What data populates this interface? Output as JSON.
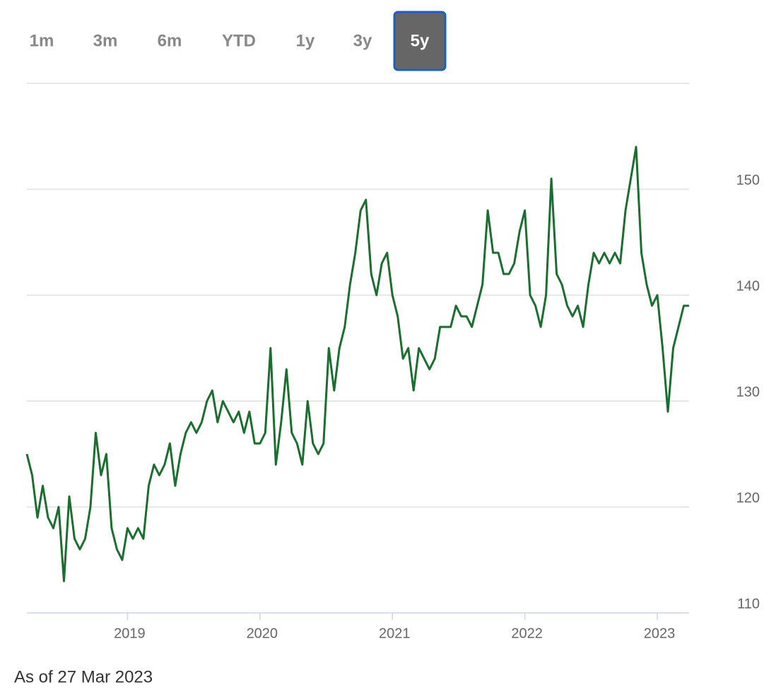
{
  "chart_data": {
    "type": "line",
    "range_buttons": [
      "1m",
      "3m",
      "6m",
      "YTD",
      "1y",
      "3y",
      "5y"
    ],
    "selected_range": "5y",
    "note": "As of 27 Mar 2023",
    "x": [
      2018.24,
      2018.28,
      2018.32,
      2018.36,
      2018.4,
      2018.44,
      2018.48,
      2018.52,
      2018.56,
      2018.6,
      2018.64,
      2018.68,
      2018.72,
      2018.76,
      2018.8,
      2018.84,
      2018.88,
      2018.92,
      2018.96,
      2019.0,
      2019.04,
      2019.08,
      2019.12,
      2019.16,
      2019.2,
      2019.24,
      2019.28,
      2019.32,
      2019.36,
      2019.4,
      2019.44,
      2019.48,
      2019.52,
      2019.56,
      2019.6,
      2019.64,
      2019.68,
      2019.72,
      2019.76,
      2019.8,
      2019.84,
      2019.88,
      2019.92,
      2019.96,
      2020.0,
      2020.04,
      2020.08,
      2020.12,
      2020.16,
      2020.2,
      2020.24,
      2020.28,
      2020.32,
      2020.36,
      2020.4,
      2020.44,
      2020.48,
      2020.52,
      2020.56,
      2020.6,
      2020.64,
      2020.68,
      2020.72,
      2020.76,
      2020.8,
      2020.84,
      2020.88,
      2020.92,
      2020.96,
      2021.0,
      2021.04,
      2021.08,
      2021.12,
      2021.16,
      2021.2,
      2021.24,
      2021.28,
      2021.32,
      2021.36,
      2021.4,
      2021.44,
      2021.48,
      2021.52,
      2021.56,
      2021.6,
      2021.64,
      2021.68,
      2021.72,
      2021.76,
      2021.8,
      2021.84,
      2021.88,
      2021.92,
      2021.96,
      2022.0,
      2022.04,
      2022.08,
      2022.12,
      2022.16,
      2022.2,
      2022.24,
      2022.28,
      2022.32,
      2022.36,
      2022.4,
      2022.44,
      2022.48,
      2022.52,
      2022.56,
      2022.6,
      2022.64,
      2022.68,
      2022.72,
      2022.76,
      2022.8,
      2022.84,
      2022.88,
      2022.92,
      2022.96,
      2023.0,
      2023.04,
      2023.08,
      2023.12,
      2023.16,
      2023.2,
      2023.24
    ],
    "series": [
      {
        "color": "#1a6e2e",
        "values": [
          125,
          123,
          119,
          122,
          119,
          118,
          120,
          113,
          121,
          117,
          116,
          117,
          120,
          127,
          123,
          125,
          118,
          116,
          115,
          118,
          117,
          118,
          117,
          122,
          124,
          123,
          124,
          126,
          122,
          125,
          127,
          128,
          127,
          128,
          130,
          131,
          128,
          130,
          129,
          128,
          129,
          127,
          129,
          126,
          126,
          127,
          135,
          124,
          128,
          133,
          127,
          126,
          124,
          130,
          126,
          125,
          126,
          135,
          131,
          135,
          137,
          141,
          144,
          148,
          149,
          142,
          140,
          143,
          144,
          140,
          138,
          134,
          135,
          131,
          135,
          134,
          133,
          134,
          137,
          137,
          137,
          139,
          138,
          138,
          137,
          139,
          141,
          148,
          144,
          144,
          142,
          142,
          143,
          146,
          148,
          140,
          139,
          137,
          140,
          151,
          142,
          141,
          139,
          138,
          139,
          137,
          141,
          144,
          143,
          144,
          143,
          144,
          143,
          148,
          151,
          154,
          144,
          141,
          139,
          140,
          135,
          129,
          135,
          137,
          139,
          139
        ]
      }
    ],
    "xlim": [
      2018.24,
      2023.24
    ],
    "xticks": [
      2019,
      2020,
      2021,
      2022,
      2023
    ],
    "ylim": [
      110,
      160
    ],
    "yticks": [
      110,
      120,
      130,
      140,
      150
    ],
    "grid": true
  }
}
